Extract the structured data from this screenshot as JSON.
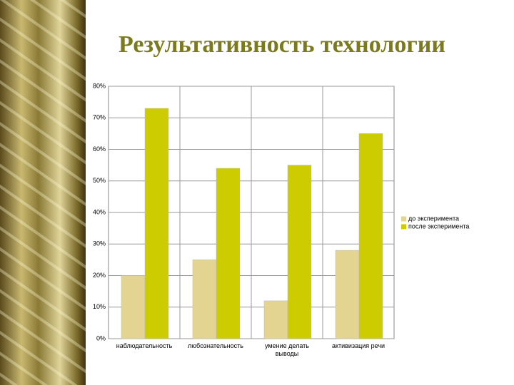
{
  "chart_data": {
    "type": "bar",
    "title": "Результативность технологии",
    "categories": [
      "наблюдательность",
      "любознательность",
      "умение делать выводы",
      "активизация речи"
    ],
    "series": [
      {
        "name": "до эксперимента",
        "color": "#e3d491",
        "values": [
          20,
          25,
          12,
          28
        ]
      },
      {
        "name": "после эксперимента",
        "color": "#cccc00",
        "values": [
          73,
          54,
          55,
          65
        ]
      }
    ],
    "ylim": [
      0,
      80
    ],
    "yticks": [
      {
        "value": 0,
        "label": "0%"
      },
      {
        "value": 10,
        "label": "10%"
      },
      {
        "value": 20,
        "label": "20%"
      },
      {
        "value": 30,
        "label": "30%"
      },
      {
        "value": 40,
        "label": "40%"
      },
      {
        "value": 50,
        "label": "50%"
      },
      {
        "value": 60,
        "label": "60%"
      },
      {
        "value": 70,
        "label": "70%"
      },
      {
        "value": 80,
        "label": "80%"
      }
    ],
    "grid": true,
    "legend": "right"
  }
}
